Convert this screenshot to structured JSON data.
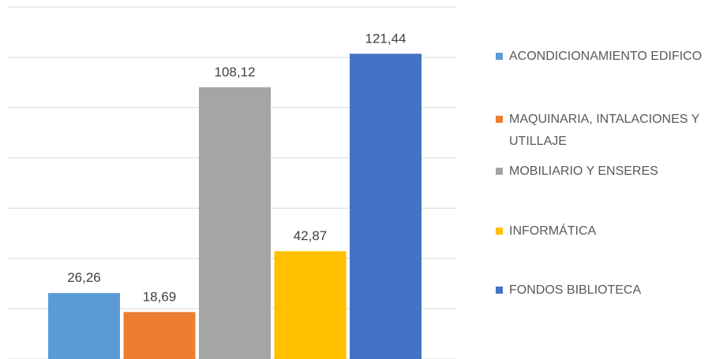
{
  "chart_data": {
    "type": "bar",
    "series": [
      {
        "name": "ACONDICIONAMIENTO EDIFICO",
        "color": "#5b9bd5",
        "values": [
          26.26
        ],
        "value_labels": [
          "26,26"
        ]
      },
      {
        "name": "MAQUINARIA, INTALACIONES Y UTILLAJE",
        "color": "#ed7d31",
        "values": [
          18.69
        ],
        "value_labels": [
          "18,69"
        ]
      },
      {
        "name": "MOBILIARIO Y ENSERES",
        "color": "#a5a5a5",
        "values": [
          108.12
        ],
        "value_labels": [
          "108,12"
        ]
      },
      {
        "name": "INFORMÁTICA",
        "color": "#ffc000",
        "values": [
          42.87
        ],
        "value_labels": [
          "42,87"
        ]
      },
      {
        "name": "FONDOS BIBLIOTECA",
        "color": "#4472c4",
        "values": [
          121.44
        ],
        "value_labels": [
          "121,44"
        ]
      }
    ],
    "ylim": [
      0,
      140
    ],
    "yticks": [
      0,
      20,
      40,
      60,
      80,
      100,
      120,
      140
    ],
    "grid": true
  }
}
